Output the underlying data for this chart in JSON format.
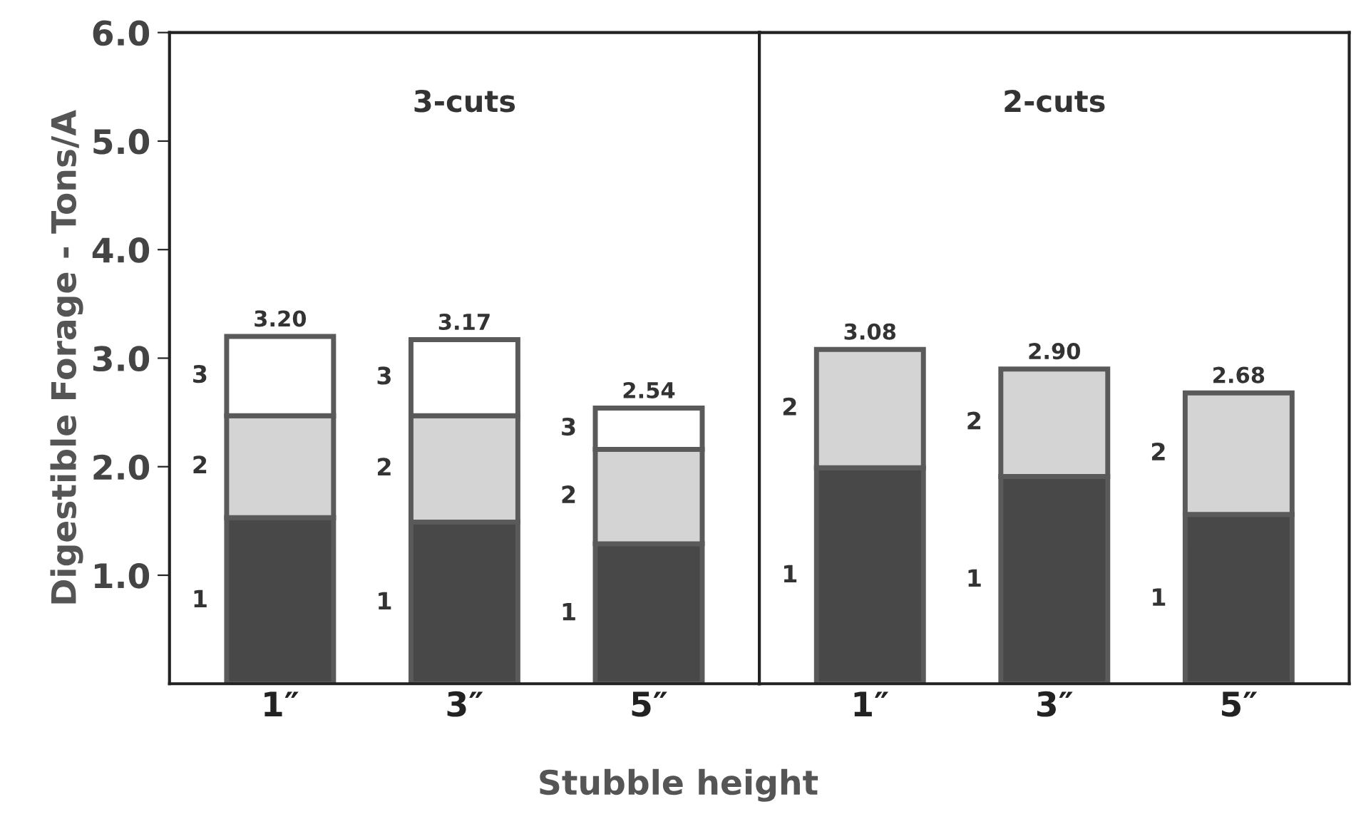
{
  "chart_data": [
    {
      "type": "bar",
      "stacked": true,
      "title": "3-cuts",
      "ylabel": "Digestible Forage - Tons/A",
      "xlabel": "Stubble height",
      "categories": [
        "1″",
        "3″",
        "5″"
      ],
      "series": [
        {
          "name": "1",
          "color": "#484848",
          "values": [
            1.53,
            1.49,
            1.29
          ]
        },
        {
          "name": "2",
          "color": "#d4d4d4",
          "values": [
            0.94,
            0.98,
            0.87
          ]
        },
        {
          "name": "3",
          "color": "#ffffff",
          "values": [
            0.73,
            0.7,
            0.38
          ]
        }
      ],
      "totals": [
        "3.20",
        "3.17",
        "2.54"
      ],
      "ylim": [
        0,
        6
      ],
      "yticks": [
        {
          "value": 1,
          "label": "1.0"
        },
        {
          "value": 2,
          "label": "2.0"
        },
        {
          "value": 3,
          "label": "3.0"
        },
        {
          "value": 4,
          "label": "4.0"
        },
        {
          "value": 5,
          "label": "5.0"
        },
        {
          "value": 6,
          "label": "6.0"
        }
      ],
      "grid": false,
      "legend": false
    },
    {
      "type": "bar",
      "stacked": true,
      "title": "2-cuts",
      "categories": [
        "1″",
        "3″",
        "5″"
      ],
      "series": [
        {
          "name": "1",
          "color": "#484848",
          "values": [
            1.99,
            1.91,
            1.56
          ]
        },
        {
          "name": "2",
          "color": "#d4d4d4",
          "values": [
            1.09,
            0.99,
            1.12
          ]
        }
      ],
      "totals": [
        "3.08",
        "2.90",
        "2.68"
      ],
      "ylim": [
        0,
        6
      ],
      "tick_labels": "x",
      "grid": false,
      "legend": false
    }
  ]
}
